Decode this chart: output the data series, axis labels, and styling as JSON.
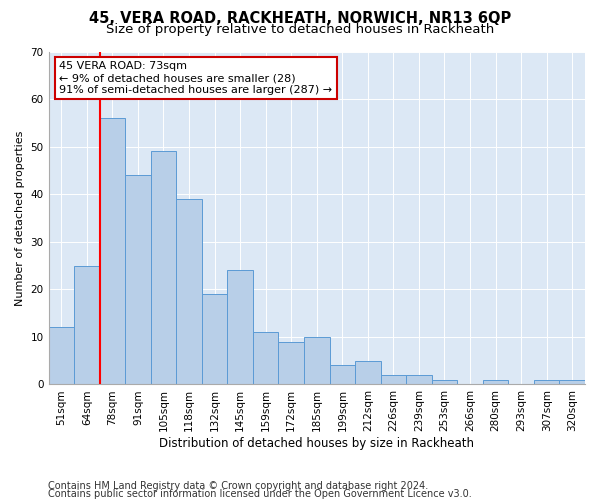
{
  "title": "45, VERA ROAD, RACKHEATH, NORWICH, NR13 6QP",
  "subtitle": "Size of property relative to detached houses in Rackheath",
  "xlabel": "Distribution of detached houses by size in Rackheath",
  "ylabel": "Number of detached properties",
  "categories": [
    "51sqm",
    "64sqm",
    "78sqm",
    "91sqm",
    "105sqm",
    "118sqm",
    "132sqm",
    "145sqm",
    "159sqm",
    "172sqm",
    "185sqm",
    "199sqm",
    "212sqm",
    "226sqm",
    "239sqm",
    "253sqm",
    "266sqm",
    "280sqm",
    "293sqm",
    "307sqm",
    "320sqm"
  ],
  "values": [
    12,
    25,
    56,
    44,
    49,
    39,
    19,
    24,
    11,
    9,
    10,
    4,
    5,
    2,
    2,
    1,
    0,
    1,
    0,
    1,
    1
  ],
  "bar_color": "#b8cfe8",
  "bar_edge_color": "#5b9bd5",
  "red_line_x": 1.5,
  "annotation_line1": "45 VERA ROAD: 73sqm",
  "annotation_line2": "← 9% of detached houses are smaller (28)",
  "annotation_line3": "91% of semi-detached houses are larger (287) →",
  "annotation_box_color": "#ffffff",
  "annotation_box_edge": "#cc0000",
  "ylim": [
    0,
    70
  ],
  "yticks": [
    0,
    10,
    20,
    30,
    40,
    50,
    60,
    70
  ],
  "footer1": "Contains HM Land Registry data © Crown copyright and database right 2024.",
  "footer2": "Contains public sector information licensed under the Open Government Licence v3.0.",
  "background_color": "#dce8f5",
  "title_fontsize": 10.5,
  "subtitle_fontsize": 9.5,
  "xlabel_fontsize": 8.5,
  "ylabel_fontsize": 8,
  "tick_fontsize": 7.5,
  "footer_fontsize": 7,
  "annot_fontsize": 8
}
